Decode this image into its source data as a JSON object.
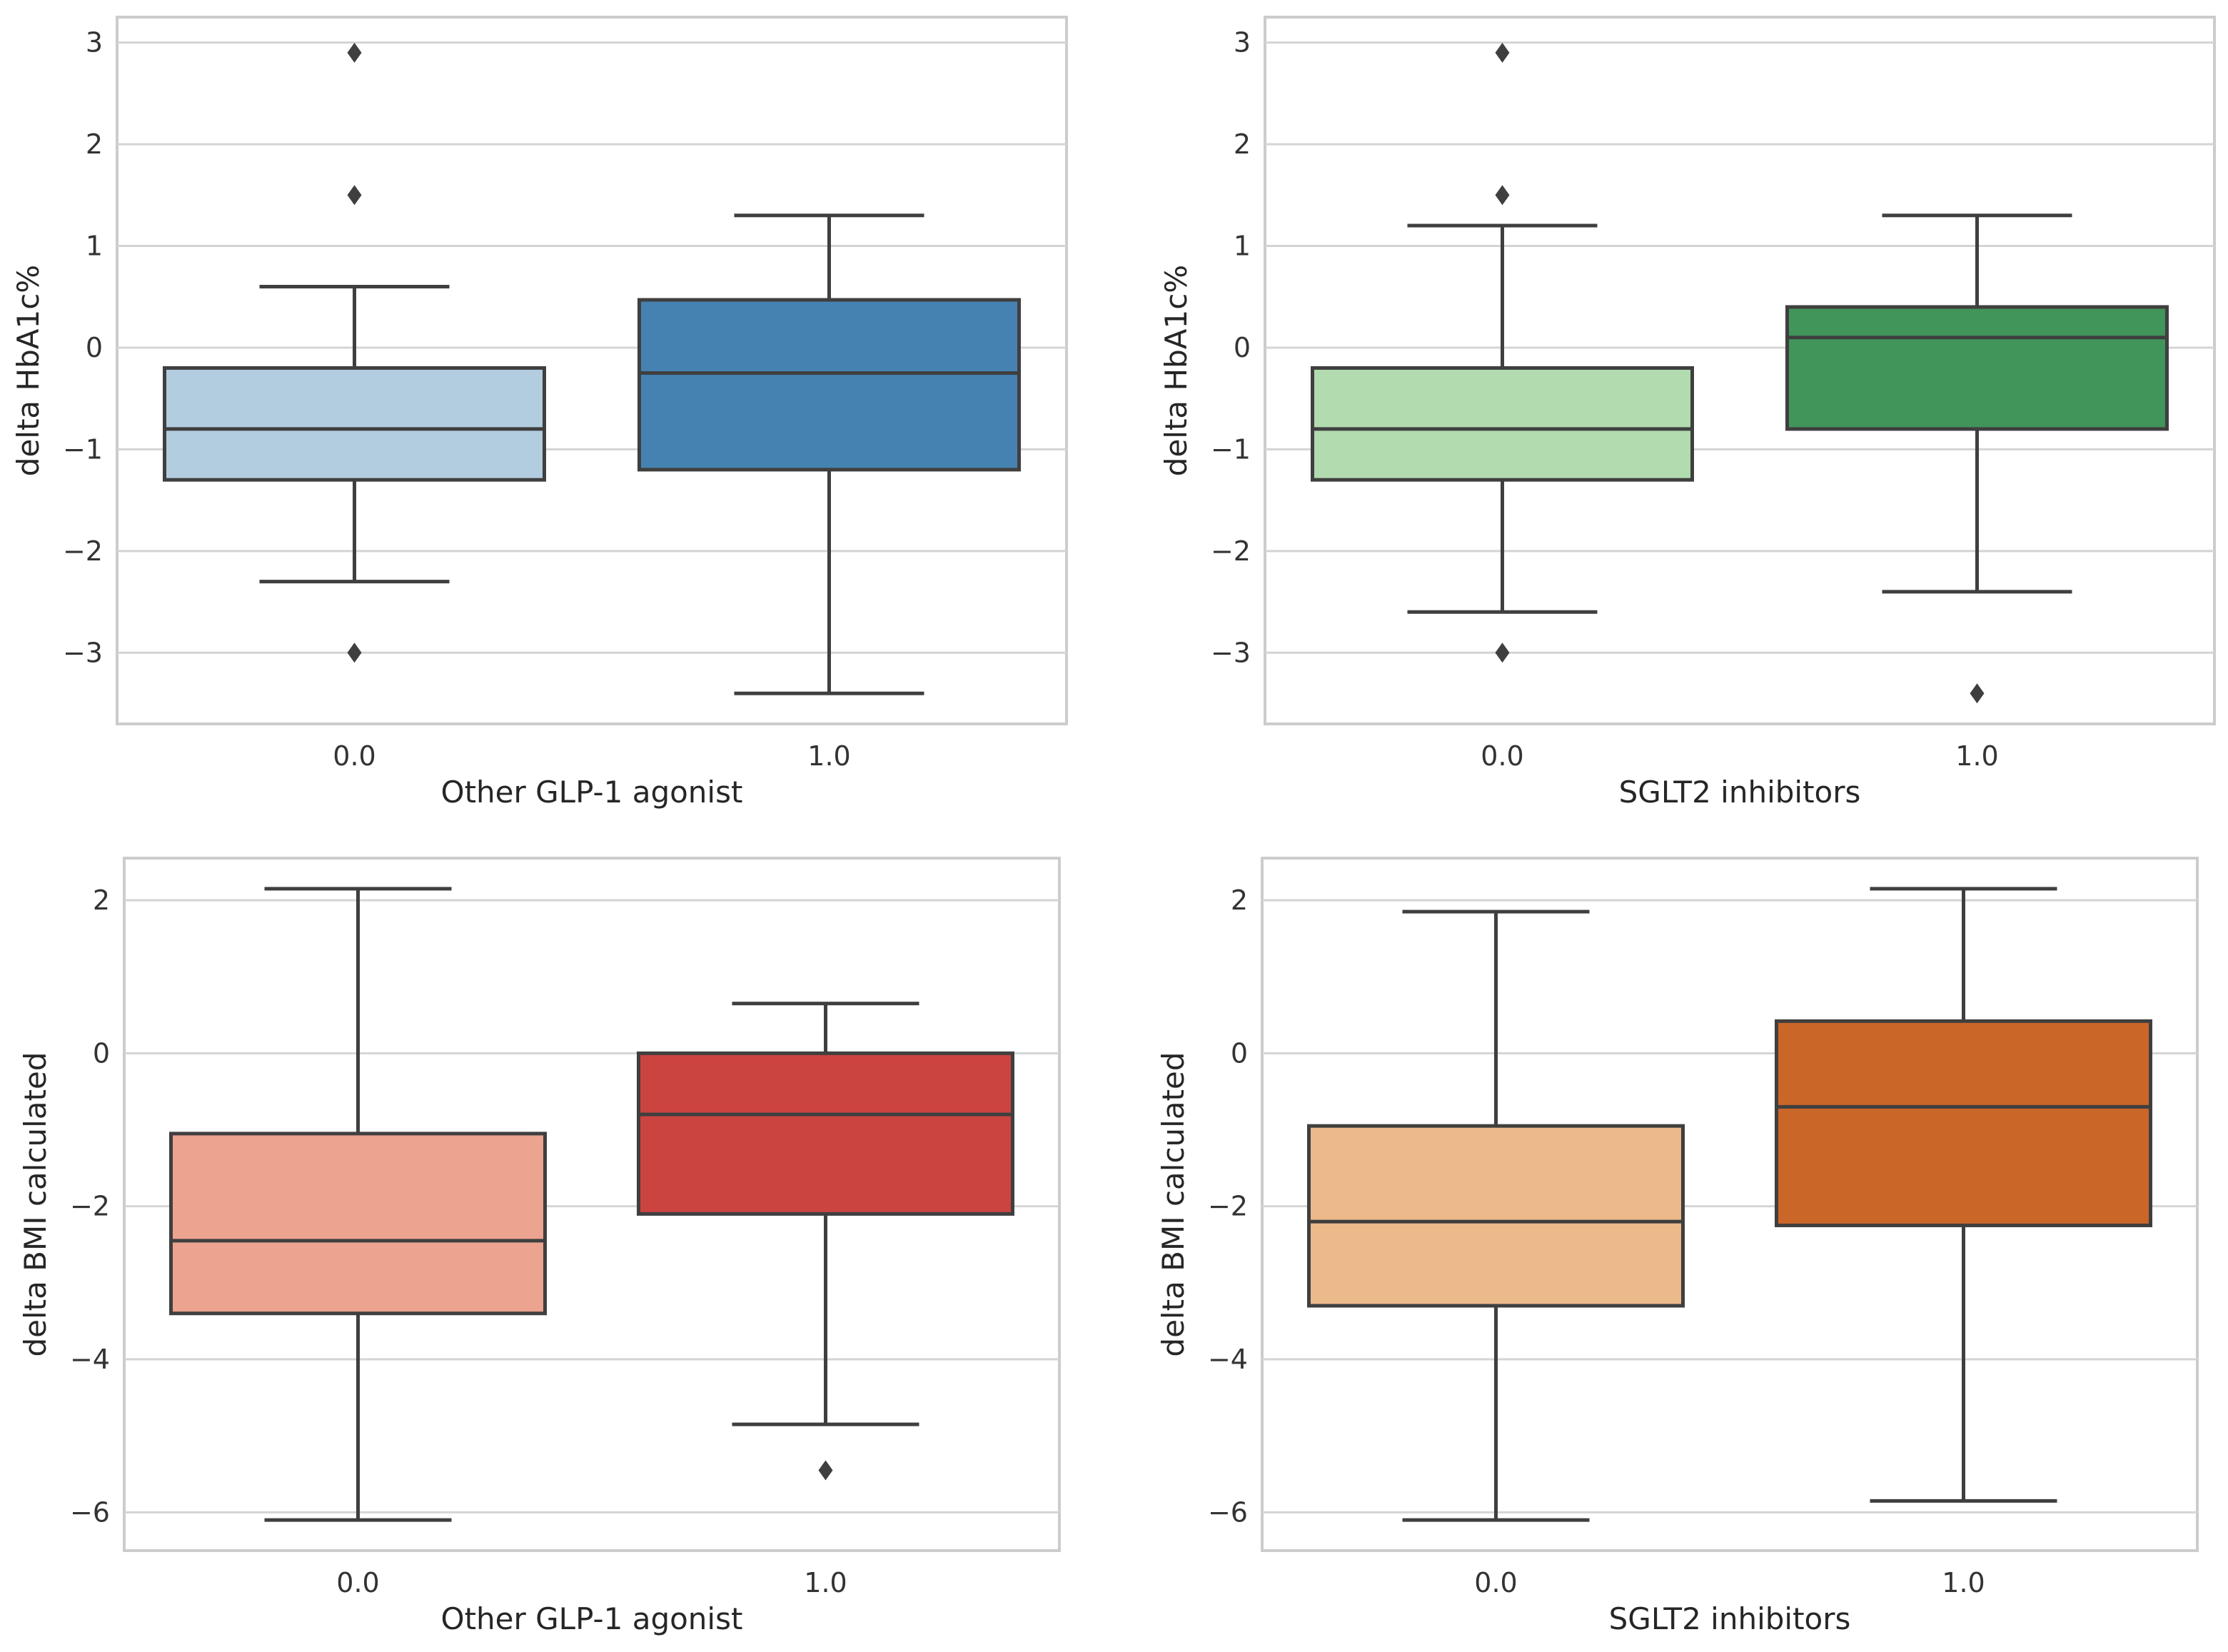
{
  "chart_data": [
    {
      "type": "box",
      "xlabel": "Other GLP-1 agonist",
      "ylabel": "delta HbA1c%",
      "ylim": [
        -3.7,
        3.25
      ],
      "yticks": [
        3,
        2,
        1,
        0,
        -1,
        -2,
        -3
      ],
      "ytick_labels": [
        "3",
        "2",
        "1",
        "0",
        "−1",
        "−2",
        "−3"
      ],
      "categories": [
        "0.0",
        "1.0"
      ],
      "grid": true,
      "boxes": [
        {
          "category": "0.0",
          "whisker_low": -2.3,
          "q1": -1.3,
          "median": -0.8,
          "q3": -0.2,
          "whisker_high": 0.6,
          "fliers": [
            2.9,
            1.5,
            -3.0
          ],
          "color": "#b3cde0"
        },
        {
          "category": "1.0",
          "whisker_low": -3.4,
          "q1": -1.2,
          "median": -0.25,
          "q3": 0.47,
          "whisker_high": 1.3,
          "fliers": [],
          "color": "#4682b1"
        }
      ]
    },
    {
      "type": "box",
      "xlabel": "SGLT2 inhibitors",
      "ylabel": "delta HbA1c%",
      "ylim": [
        -3.7,
        3.25
      ],
      "yticks": [
        3,
        2,
        1,
        0,
        -1,
        -2,
        -3
      ],
      "ytick_labels": [
        "3",
        "2",
        "1",
        "0",
        "−1",
        "−2",
        "−3"
      ],
      "categories": [
        "0.0",
        "1.0"
      ],
      "grid": true,
      "boxes": [
        {
          "category": "0.0",
          "whisker_low": -2.6,
          "q1": -1.3,
          "median": -0.8,
          "q3": -0.2,
          "whisker_high": 1.2,
          "fliers": [
            2.9,
            1.5,
            -3.0
          ],
          "color": "#b2dbb0"
        },
        {
          "category": "1.0",
          "whisker_low": -2.4,
          "q1": -0.8,
          "median": 0.1,
          "q3": 0.4,
          "whisker_high": 1.3,
          "fliers": [
            -3.4
          ],
          "color": "#41945a"
        }
      ]
    },
    {
      "type": "box",
      "xlabel": "Other GLP-1 agonist",
      "ylabel": "delta BMI calculated",
      "ylim": [
        -6.5,
        2.55
      ],
      "yticks": [
        2,
        0,
        -2,
        -4,
        -6
      ],
      "ytick_labels": [
        "2",
        "0",
        "−2",
        "−4",
        "−6"
      ],
      "categories": [
        "0.0",
        "1.0"
      ],
      "grid": true,
      "boxes": [
        {
          "category": "0.0",
          "whisker_low": -6.1,
          "q1": -3.4,
          "median": -2.45,
          "q3": -1.05,
          "whisker_high": 2.15,
          "fliers": [],
          "color": "#eca38f"
        },
        {
          "category": "1.0",
          "whisker_low": -4.85,
          "q1": -2.1,
          "median": -0.8,
          "q3": 0.0,
          "whisker_high": 0.65,
          "fliers": [
            -5.45
          ],
          "color": "#cb4440"
        }
      ]
    },
    {
      "type": "box",
      "xlabel": "SGLT2 inhibitors",
      "ylabel": "delta BMI calculated",
      "ylim": [
        -6.5,
        2.55
      ],
      "yticks": [
        2,
        0,
        -2,
        -4,
        -6
      ],
      "ytick_labels": [
        "2",
        "0",
        "−2",
        "−4",
        "−6"
      ],
      "categories": [
        "0.0",
        "1.0"
      ],
      "grid": true,
      "boxes": [
        {
          "category": "0.0",
          "whisker_low": -6.1,
          "q1": -3.3,
          "median": -2.2,
          "q3": -0.95,
          "whisker_high": 1.85,
          "fliers": [],
          "color": "#ecb98a"
        },
        {
          "category": "1.0",
          "whisker_low": -5.85,
          "q1": -2.25,
          "median": -0.7,
          "q3": 0.42,
          "whisker_high": 2.15,
          "fliers": [],
          "color": "#cb6629"
        }
      ]
    }
  ]
}
